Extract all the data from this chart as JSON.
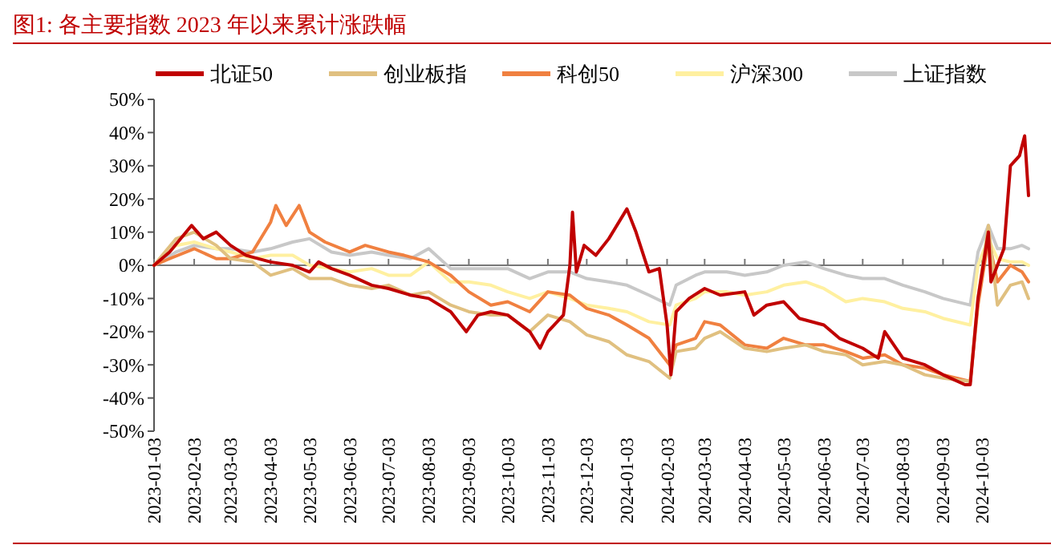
{
  "chart_data": {
    "type": "line",
    "title": "图1:   各主要指数 2023 年以来累计涨跌幅",
    "legend": "top",
    "line_style": "solid",
    "marker": "none",
    "xlim": [
      "2023-01-03",
      "2024-11-08"
    ],
    "xticks": [
      "2023-01-03",
      "2023-02-03",
      "2023-03-03",
      "2023-04-03",
      "2023-05-03",
      "2023-06-03",
      "2023-07-03",
      "2023-08-03",
      "2023-09-03",
      "2023-10-03",
      "2023-11-03",
      "2023-12-03",
      "2024-01-03",
      "2024-02-03",
      "2024-03-03",
      "2024-04-03",
      "2024-05-03",
      "2024-06-03",
      "2024-07-03",
      "2024-08-03",
      "2024-09-03",
      "2024-10-03"
    ],
    "ylim": [
      -50,
      50
    ],
    "yticks": [
      {
        "value": -50,
        "label": "-50%"
      },
      {
        "value": -40,
        "label": "-40%"
      },
      {
        "value": -30,
        "label": "-30%"
      },
      {
        "value": -20,
        "label": "-20%"
      },
      {
        "value": -10,
        "label": "-10%"
      },
      {
        "value": 0,
        "label": "0%"
      },
      {
        "value": 10,
        "label": "10%"
      },
      {
        "value": 20,
        "label": "20%"
      },
      {
        "value": 30,
        "label": "30%"
      },
      {
        "value": 40,
        "label": "40%"
      },
      {
        "value": 50,
        "label": "50%"
      }
    ],
    "series": [
      {
        "name": "北证50",
        "color": "#c00000",
        "x": [
          "2023-01-03",
          "2023-01-15",
          "2023-02-01",
          "2023-02-10",
          "2023-02-20",
          "2023-03-03",
          "2023-03-15",
          "2023-04-03",
          "2023-04-20",
          "2023-05-03",
          "2023-05-10",
          "2023-05-20",
          "2023-06-03",
          "2023-06-20",
          "2023-07-03",
          "2023-07-20",
          "2023-08-03",
          "2023-08-20",
          "2023-09-01",
          "2023-09-10",
          "2023-09-20",
          "2023-10-03",
          "2023-10-20",
          "2023-10-28",
          "2023-11-03",
          "2023-11-15",
          "2023-11-20",
          "2023-11-22",
          "2023-11-25",
          "2023-12-01",
          "2023-12-10",
          "2023-12-20",
          "2024-01-03",
          "2024-01-10",
          "2024-01-20",
          "2024-01-28",
          "2024-02-03",
          "2024-02-06",
          "2024-02-10",
          "2024-02-20",
          "2024-03-03",
          "2024-03-15",
          "2024-04-03",
          "2024-04-10",
          "2024-04-20",
          "2024-05-03",
          "2024-05-15",
          "2024-06-03",
          "2024-06-15",
          "2024-07-03",
          "2024-07-15",
          "2024-07-20",
          "2024-08-03",
          "2024-08-20",
          "2024-09-03",
          "2024-09-20",
          "2024-09-24",
          "2024-09-30",
          "2024-10-08",
          "2024-10-10",
          "2024-10-20",
          "2024-10-25",
          "2024-11-01",
          "2024-11-05",
          "2024-11-08"
        ],
        "values": [
          0,
          4,
          12,
          8,
          10,
          6,
          3,
          1,
          0,
          -2,
          1,
          -1,
          -3,
          -6,
          -7,
          -9,
          -10,
          -14,
          -20,
          -15,
          -14,
          -15,
          -20,
          -25,
          -20,
          -15,
          0,
          16,
          -2,
          6,
          3,
          8,
          17,
          10,
          -2,
          -1,
          -18,
          -33,
          -14,
          -10,
          -7,
          -9,
          -8,
          -15,
          -12,
          -11,
          -16,
          -18,
          -22,
          -25,
          -28,
          -20,
          -28,
          -30,
          -33,
          -36,
          -36,
          -10,
          10,
          -5,
          5,
          30,
          33,
          39,
          21
        ]
      },
      {
        "name": "创业板指",
        "color": "#e0c080",
        "x": [
          "2023-01-03",
          "2023-01-20",
          "2023-02-03",
          "2023-02-20",
          "2023-03-03",
          "2023-03-20",
          "2023-04-03",
          "2023-04-20",
          "2023-05-03",
          "2023-05-20",
          "2023-06-03",
          "2023-06-20",
          "2023-07-03",
          "2023-07-20",
          "2023-08-03",
          "2023-08-20",
          "2023-09-03",
          "2023-09-20",
          "2023-10-03",
          "2023-10-20",
          "2023-11-03",
          "2023-11-20",
          "2023-12-03",
          "2023-12-20",
          "2024-01-03",
          "2024-01-20",
          "2024-02-05",
          "2024-02-10",
          "2024-02-25",
          "2024-03-03",
          "2024-03-15",
          "2024-04-03",
          "2024-04-20",
          "2024-05-03",
          "2024-05-20",
          "2024-06-03",
          "2024-06-20",
          "2024-07-03",
          "2024-07-20",
          "2024-08-03",
          "2024-08-20",
          "2024-09-03",
          "2024-09-24",
          "2024-09-30",
          "2024-10-08",
          "2024-10-15",
          "2024-10-25",
          "2024-11-03",
          "2024-11-08"
        ],
        "values": [
          0,
          8,
          10,
          6,
          2,
          1,
          -3,
          -1,
          -4,
          -4,
          -6,
          -7,
          -6,
          -9,
          -8,
          -12,
          -14,
          -15,
          -15,
          -20,
          -15,
          -17,
          -21,
          -23,
          -27,
          -29,
          -34,
          -26,
          -25,
          -22,
          -20,
          -25,
          -26,
          -25,
          -24,
          -26,
          -27,
          -30,
          -29,
          -30,
          -33,
          -34,
          -35,
          -10,
          12,
          -12,
          -6,
          -5,
          -10
        ]
      },
      {
        "name": "科创50",
        "color": "#f08040",
        "x": [
          "2023-01-03",
          "2023-01-15",
          "2023-02-03",
          "2023-02-20",
          "2023-03-03",
          "2023-03-20",
          "2023-04-03",
          "2023-04-07",
          "2023-04-15",
          "2023-04-25",
          "2023-05-03",
          "2023-05-15",
          "2023-06-03",
          "2023-06-15",
          "2023-07-03",
          "2023-07-15",
          "2023-08-03",
          "2023-08-20",
          "2023-09-03",
          "2023-09-20",
          "2023-10-03",
          "2023-10-20",
          "2023-11-03",
          "2023-11-20",
          "2023-12-03",
          "2023-12-20",
          "2024-01-03",
          "2024-01-20",
          "2024-02-05",
          "2024-02-10",
          "2024-02-25",
          "2024-03-03",
          "2024-03-15",
          "2024-04-03",
          "2024-04-20",
          "2024-05-03",
          "2024-05-20",
          "2024-06-03",
          "2024-06-20",
          "2024-07-03",
          "2024-07-20",
          "2024-08-03",
          "2024-08-20",
          "2024-09-03",
          "2024-09-24",
          "2024-09-30",
          "2024-10-08",
          "2024-10-15",
          "2024-10-25",
          "2024-11-03",
          "2024-11-08"
        ],
        "values": [
          0,
          2,
          5,
          2,
          2,
          4,
          13,
          18,
          12,
          18,
          10,
          7,
          4,
          6,
          4,
          3,
          1,
          -3,
          -8,
          -12,
          -11,
          -14,
          -8,
          -9,
          -13,
          -15,
          -18,
          -22,
          -30,
          -24,
          -22,
          -17,
          -18,
          -24,
          -25,
          -22,
          -24,
          -24,
          -26,
          -28,
          -27,
          -30,
          -31,
          -33,
          -35,
          -12,
          8,
          -5,
          0,
          -2,
          -5
        ]
      },
      {
        "name": "沪深300",
        "color": "#fff0a0",
        "x": [
          "2023-01-03",
          "2023-01-20",
          "2023-02-03",
          "2023-02-20",
          "2023-03-03",
          "2023-03-20",
          "2023-04-03",
          "2023-04-20",
          "2023-05-03",
          "2023-05-20",
          "2023-06-03",
          "2023-06-20",
          "2023-07-03",
          "2023-07-20",
          "2023-08-03",
          "2023-08-20",
          "2023-09-03",
          "2023-09-20",
          "2023-10-03",
          "2023-10-20",
          "2023-11-03",
          "2023-11-20",
          "2023-12-03",
          "2023-12-20",
          "2024-01-03",
          "2024-01-20",
          "2024-02-05",
          "2024-02-10",
          "2024-02-25",
          "2024-03-03",
          "2024-03-20",
          "2024-04-03",
          "2024-04-20",
          "2024-05-03",
          "2024-05-20",
          "2024-06-03",
          "2024-06-20",
          "2024-07-03",
          "2024-07-20",
          "2024-08-03",
          "2024-08-20",
          "2024-09-03",
          "2024-09-24",
          "2024-09-30",
          "2024-10-08",
          "2024-10-15",
          "2024-10-25",
          "2024-11-03",
          "2024-11-08"
        ],
        "values": [
          0,
          6,
          7,
          5,
          4,
          2,
          3,
          3,
          0,
          -1,
          -2,
          -1,
          -3,
          -3,
          1,
          -5,
          -5,
          -6,
          -8,
          -10,
          -8,
          -10,
          -12,
          -13,
          -14,
          -17,
          -18,
          -12,
          -10,
          -8,
          -8,
          -9,
          -8,
          -6,
          -5,
          -7,
          -11,
          -10,
          -11,
          -13,
          -14,
          -16,
          -18,
          0,
          8,
          2,
          1,
          1,
          0
        ]
      },
      {
        "name": "上证指数",
        "color": "#c8c8c8",
        "x": [
          "2023-01-03",
          "2023-01-20",
          "2023-02-03",
          "2023-02-20",
          "2023-03-03",
          "2023-03-20",
          "2023-04-03",
          "2023-04-20",
          "2023-05-03",
          "2023-05-20",
          "2023-06-03",
          "2023-06-20",
          "2023-07-03",
          "2023-07-20",
          "2023-08-03",
          "2023-08-20",
          "2023-09-03",
          "2023-09-20",
          "2023-10-03",
          "2023-10-20",
          "2023-11-03",
          "2023-11-20",
          "2023-12-03",
          "2023-12-20",
          "2024-01-03",
          "2024-01-20",
          "2024-02-05",
          "2024-02-10",
          "2024-02-25",
          "2024-03-03",
          "2024-03-20",
          "2024-04-03",
          "2024-04-20",
          "2024-05-03",
          "2024-05-20",
          "2024-06-03",
          "2024-06-20",
          "2024-07-03",
          "2024-07-20",
          "2024-08-03",
          "2024-08-20",
          "2024-09-03",
          "2024-09-24",
          "2024-09-30",
          "2024-10-08",
          "2024-10-15",
          "2024-10-25",
          "2024-11-03",
          "2024-11-08"
        ],
        "values": [
          0,
          4,
          6,
          5,
          5,
          4,
          5,
          7,
          8,
          4,
          3,
          4,
          3,
          2,
          5,
          -1,
          -1,
          -1,
          -1,
          -4,
          -2,
          -2,
          -4,
          -5,
          -6,
          -9,
          -12,
          -6,
          -3,
          -2,
          -2,
          -3,
          -2,
          0,
          1,
          -1,
          -3,
          -4,
          -4,
          -6,
          -8,
          -10,
          -12,
          4,
          12,
          5,
          5,
          6,
          5
        ]
      }
    ]
  }
}
